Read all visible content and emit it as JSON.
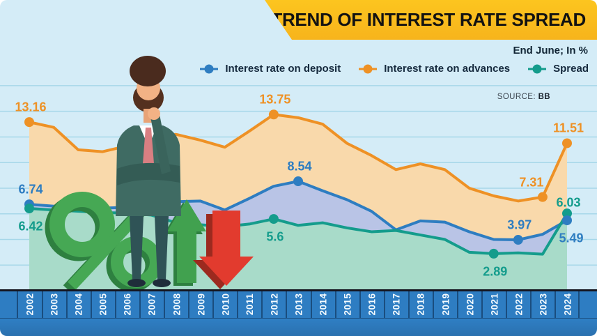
{
  "header": {
    "title": "TREND OF INTEREST RATE SPREAD",
    "subtitle": "End June;  In %",
    "source_label": "SOURCE:",
    "source_value": "BB"
  },
  "colors": {
    "background": "#d4ecf7",
    "banner": "#f9bd1e",
    "gridline": "#a6d7e9",
    "axis_band": "#2e7dc2",
    "axis_divider": "#1a4d7e",
    "axis_text": "#ffffff",
    "baseline": "#15151f"
  },
  "chart_data": {
    "type": "area",
    "title": "TREND OF INTEREST RATE SPREAD",
    "subtitle": "End June; In %",
    "source": "BB",
    "unit": "%",
    "grid": true,
    "legend_position": "top-right",
    "ylim": [
      0,
      16.5
    ],
    "gridline_values": [
      2,
      4,
      6,
      8,
      10,
      12,
      14,
      16
    ],
    "x": [
      "2002",
      "2003",
      "2004",
      "2005",
      "2006",
      "2007",
      "2008",
      "2009",
      "2010",
      "2011",
      "2012",
      "2013",
      "2014",
      "2015",
      "2016",
      "2017",
      "2018",
      "2019",
      "2020",
      "2021",
      "2022",
      "2023",
      "2024"
    ],
    "series": [
      {
        "key": "deposit",
        "name": "Interest rate on deposit",
        "color": "#2e7dc1",
        "fill": "#b9c4e6",
        "values": [
          6.74,
          6.6,
          6.5,
          6.45,
          6.5,
          6.7,
          6.95,
          7.0,
          6.3,
          7.2,
          8.15,
          8.54,
          7.8,
          7.1,
          6.2,
          4.75,
          5.45,
          5.35,
          4.6,
          4.0,
          3.97,
          4.4,
          5.49
        ]
      },
      {
        "key": "advances",
        "name": "Interest rate on advances",
        "color": "#ee9125",
        "fill": "#f9d9ab",
        "values": [
          13.16,
          12.75,
          11.0,
          10.85,
          11.3,
          11.8,
          12.2,
          11.75,
          11.2,
          12.45,
          13.75,
          13.5,
          13.0,
          11.5,
          10.55,
          9.45,
          9.9,
          9.45,
          8.0,
          7.4,
          7.0,
          7.31,
          11.51
        ]
      },
      {
        "key": "spread",
        "name": "Spread",
        "color": "#149c8c",
        "fill": "#a8dbc9",
        "values": [
          6.42,
          6.3,
          6.2,
          6.1,
          6.05,
          5.9,
          5.3,
          5.15,
          5.0,
          5.2,
          5.6,
          5.1,
          5.3,
          4.9,
          4.6,
          4.7,
          4.35,
          4.0,
          3.0,
          2.89,
          2.95,
          2.85,
          6.03
        ]
      }
    ],
    "labeled_points": [
      {
        "series": "advances",
        "year": "2002",
        "text": "13.16",
        "pos": "above"
      },
      {
        "series": "deposit",
        "year": "2002",
        "text": "6.74",
        "pos": "above"
      },
      {
        "series": "spread",
        "year": "2002",
        "text": "6.42",
        "pos": "below"
      },
      {
        "series": "advances",
        "year": "2012",
        "text": "13.75",
        "pos": "above"
      },
      {
        "series": "spread",
        "year": "2012",
        "text": "5.6",
        "pos": "below"
      },
      {
        "series": "deposit",
        "year": "2013",
        "text": "8.54",
        "pos": "above"
      },
      {
        "series": "spread",
        "year": "2021",
        "text": "2.89",
        "pos": "below"
      },
      {
        "series": "deposit",
        "year": "2022",
        "text": "3.97",
        "pos": "above"
      },
      {
        "series": "advances",
        "year": "2023",
        "text": "7.31",
        "pos": "above-left"
      },
      {
        "series": "advances",
        "year": "2024",
        "text": "11.51",
        "pos": "above"
      },
      {
        "series": "spread",
        "year": "2024",
        "text": "6.03",
        "pos": "above-near"
      },
      {
        "series": "deposit",
        "year": "2024",
        "text": "5.49",
        "pos": "below-right"
      }
    ]
  }
}
